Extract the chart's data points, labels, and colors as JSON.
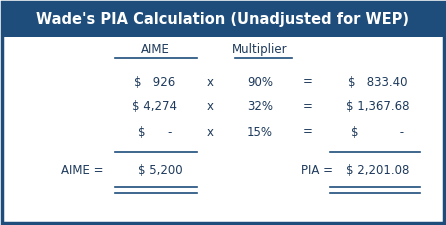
{
  "title": "Wade's PIA Calculation (Unadjusted for WEP)",
  "title_bg": "#1e4d7b",
  "title_color": "#ffffff",
  "border_color": "#1e4d7b",
  "bg_color": "#ffffff",
  "rows": [
    [
      "$   926",
      "x",
      "90%",
      "=",
      "$   833.40"
    ],
    [
      "$ 4,274",
      "x",
      "32%",
      "=",
      "$ 1,367.68"
    ],
    [
      "$      -",
      "x",
      "15%",
      "=",
      "$           -"
    ]
  ],
  "footer_label_left": "AIME =",
  "footer_value_left": "$ 5,200",
  "footer_label_right": "PIA =",
  "footer_value_right": "$ 2,201.08",
  "text_color": "#1e3a5c",
  "line_color": "#1e4d7b",
  "font_size": 8.5,
  "title_font_size": 10.5
}
